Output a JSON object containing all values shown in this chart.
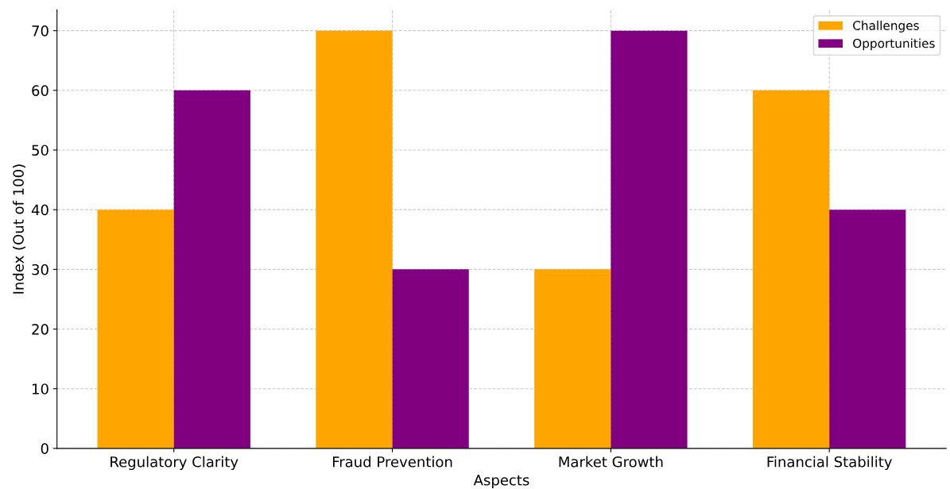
{
  "chart_data": {
    "type": "bar",
    "xlabel": "Aspects",
    "ylabel": "Index (Out of 100)",
    "categories": [
      "Regulatory Clarity",
      "Fraud Prevention",
      "Market Growth",
      "Financial Stability"
    ],
    "series": [
      {
        "name": "Challenges",
        "color": "#ffa500",
        "values": [
          40,
          70,
          30,
          60
        ]
      },
      {
        "name": "Opportunities",
        "color": "#800080",
        "values": [
          60,
          30,
          70,
          40
        ]
      }
    ],
    "ylim": [
      0,
      73.5
    ],
    "yticks": [
      0,
      10,
      20,
      30,
      40,
      50,
      60,
      70
    ],
    "grid": true,
    "legend": "top right"
  }
}
